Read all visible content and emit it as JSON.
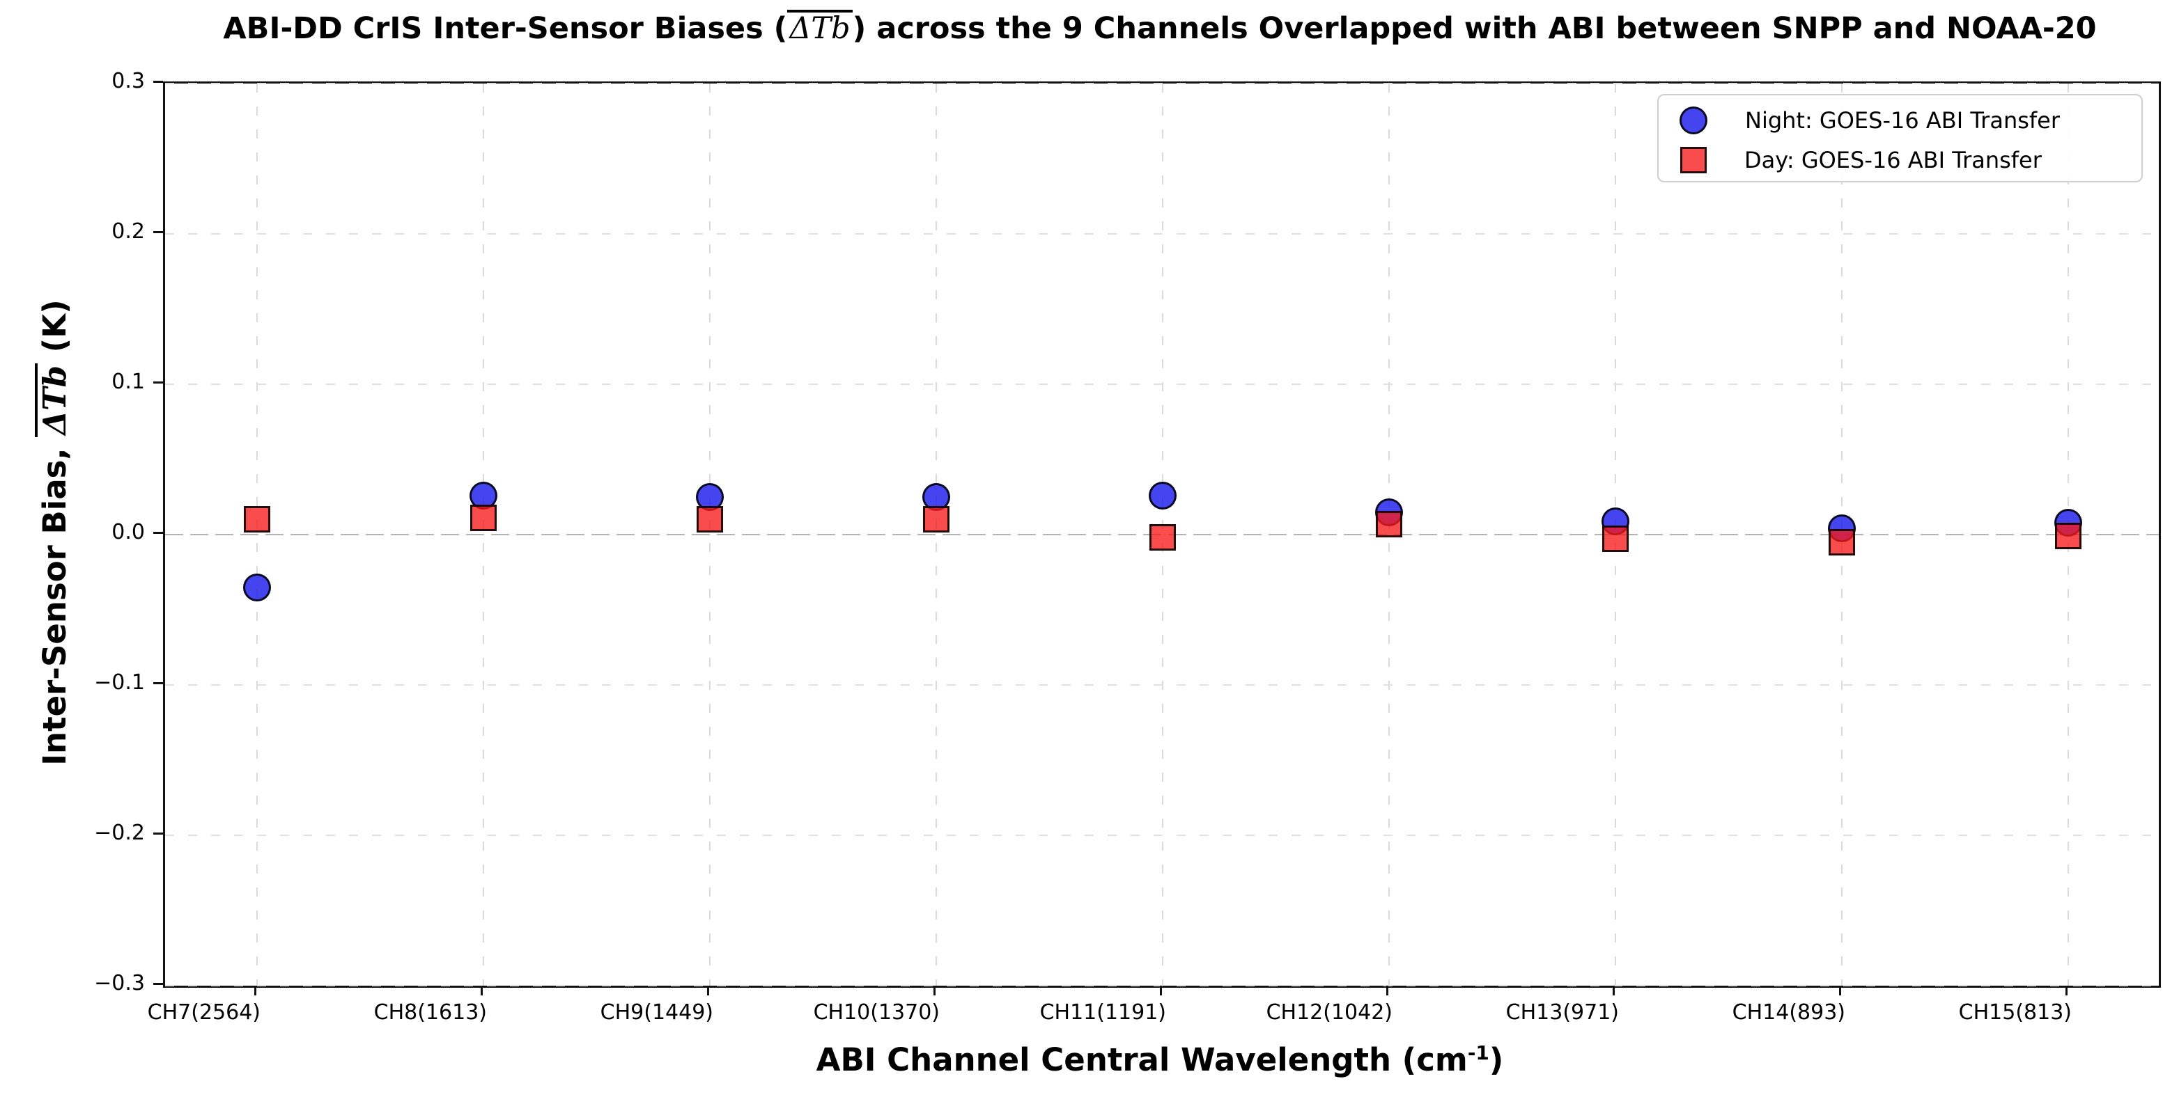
{
  "title": {
    "prefix": "ABI-DD CrIS Inter-Sensor Biases (",
    "math": "ΔTb",
    "suffix": ") across the 9 Channels Overlapped with ABI between SNPP and NOAA-20"
  },
  "axes": {
    "ylabel": {
      "prefix": "Inter-Sensor Bias, ",
      "math": "ΔTb",
      "suffix": " (K)"
    },
    "xlabel": {
      "prefix": "ABI Channel Central Wavelength (cm",
      "sup": "-1",
      "suffix": ")"
    },
    "y_tick_labels": [
      "0.3",
      "0.2",
      "0.1",
      "0.0",
      "−0.1",
      "−0.2",
      "−0.3"
    ],
    "y_tick_values": [
      0.3,
      0.2,
      0.1,
      0.0,
      -0.1,
      -0.2,
      -0.3
    ]
  },
  "legend": {
    "items": [
      {
        "label": "Night: GOES-16 ABI Transfer",
        "marker": "circle",
        "color": "#4444ef"
      },
      {
        "label": "Day: GOES-16 ABI Transfer",
        "marker": "square",
        "color": "#f94b4b"
      }
    ]
  },
  "colors": {
    "night_fill": "rgba(22,22,235,0.8)",
    "day_fill": "rgba(247,25,25,0.78)",
    "marker_edge": "rgba(0,0,0,0.85)",
    "grid": "#dcdcdc",
    "zero_line": "#b3b3b3",
    "spine": "#111111"
  },
  "chart_data": {
    "type": "scatter",
    "title": "ABI-DD CrIS Inter-Sensor Biases (ΔTb) across the 9 Channels Overlapped with ABI between SNPP and NOAA-20",
    "xlabel": "ABI Channel Central Wavelength (cm-1)",
    "ylabel": "Inter-Sensor Bias, ΔTb (K)",
    "categories": [
      "CH7(2564)",
      "CH8(1613)",
      "CH9(1449)",
      "CH10(1370)",
      "CH11(1191)",
      "CH12(1042)",
      "CH13(971)",
      "CH14(893)",
      "CH15(813)"
    ],
    "series": [
      {
        "name": "Night: GOES-16 ABI Transfer",
        "marker": "circle",
        "color": "blue",
        "values": [
          -0.035,
          0.026,
          0.025,
          0.025,
          0.026,
          0.015,
          0.009,
          0.004,
          0.008
        ]
      },
      {
        "name": "Day: GOES-16 ABI Transfer",
        "marker": "square",
        "color": "red",
        "values": [
          0.01,
          0.011,
          0.01,
          0.01,
          -0.002,
          0.007,
          -0.003,
          -0.005,
          -0.001
        ]
      }
    ],
    "ylim": [
      -0.3,
      0.3
    ],
    "y_ticks": [
      0.3,
      0.2,
      0.1,
      0.0,
      -0.1,
      -0.2,
      -0.3
    ],
    "grid": true,
    "legend_position": "upper right"
  }
}
